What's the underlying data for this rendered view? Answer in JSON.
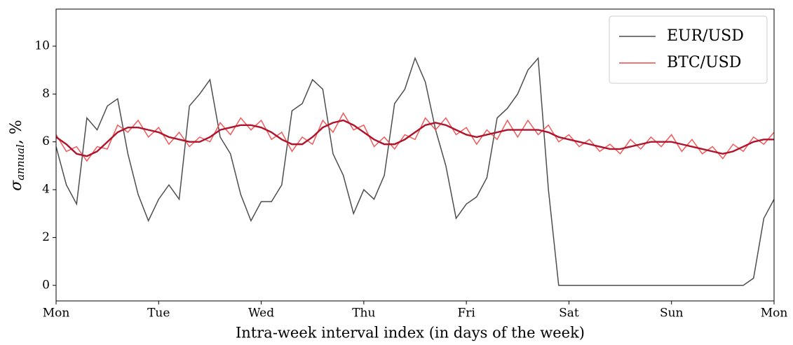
{
  "chart_data": {
    "type": "line",
    "xlabel": "Intra-week interval index (in days of the week)",
    "ylabel_symbol": "σ",
    "ylabel_subscript": "annual",
    "ylabel_unit": ", %",
    "x": [
      0,
      0.1,
      0.2,
      0.3,
      0.4,
      0.5,
      0.6,
      0.7,
      0.8,
      0.9,
      1,
      1.1,
      1.2,
      1.3,
      1.4,
      1.5,
      1.6,
      1.7,
      1.8,
      1.9,
      2,
      2.1,
      2.2,
      2.3,
      2.4,
      2.5,
      2.6,
      2.7,
      2.8,
      2.9,
      3,
      3.1,
      3.2,
      3.3,
      3.4,
      3.5,
      3.6,
      3.7,
      3.8,
      3.9,
      4,
      4.1,
      4.2,
      4.3,
      4.4,
      4.5,
      4.6,
      4.7,
      4.8,
      4.9,
      5,
      5.1,
      5.2,
      5.3,
      5.4,
      5.5,
      5.6,
      5.7,
      5.8,
      5.9,
      6,
      6.1,
      6.2,
      6.3,
      6.4,
      6.5,
      6.6,
      6.7,
      6.8,
      6.9,
      7
    ],
    "series": [
      {
        "name": "EUR/USD",
        "color": "#4d4d4d",
        "values": [
          5.8,
          4.2,
          3.4,
          7.0,
          6.5,
          7.5,
          7.8,
          5.5,
          3.8,
          2.7,
          3.6,
          4.2,
          3.6,
          7.5,
          8.0,
          8.6,
          6.2,
          5.5,
          3.8,
          2.7,
          3.5,
          3.5,
          4.2,
          7.3,
          7.6,
          8.6,
          8.2,
          5.5,
          4.6,
          3.0,
          4.0,
          3.6,
          4.6,
          7.6,
          8.2,
          9.5,
          8.5,
          6.5,
          5.0,
          2.8,
          3.4,
          3.7,
          4.5,
          7.0,
          7.4,
          8.0,
          9.0,
          9.5,
          4.0,
          0,
          0,
          0,
          0,
          0,
          0,
          0,
          0,
          0,
          0,
          0,
          0,
          0,
          0,
          0,
          0,
          0,
          0,
          0,
          0.3,
          2.8,
          3.6
        ]
      },
      {
        "name": "BTC/USD",
        "color": "#f04848",
        "values": [
          6.3,
          5.6,
          5.8,
          5.2,
          5.8,
          5.7,
          6.7,
          6.4,
          6.9,
          6.2,
          6.6,
          5.9,
          6.4,
          5.8,
          6.2,
          6.0,
          6.8,
          6.3,
          7.0,
          6.5,
          6.9,
          6.1,
          6.4,
          5.6,
          6.2,
          5.9,
          6.9,
          6.4,
          7.2,
          6.5,
          6.7,
          5.8,
          6.2,
          5.7,
          6.3,
          6.1,
          7.0,
          6.5,
          7.0,
          6.3,
          6.6,
          5.9,
          6.5,
          6.1,
          6.9,
          6.2,
          6.9,
          6.3,
          6.7,
          6.0,
          6.3,
          5.8,
          6.1,
          5.6,
          5.9,
          5.5,
          6.1,
          5.7,
          6.2,
          5.8,
          6.3,
          5.6,
          6.1,
          5.5,
          5.8,
          5.3,
          5.9,
          5.6,
          6.2,
          5.9,
          6.4
        ]
      },
      {
        "color": "#b0142c",
        "values": [
          6.2,
          5.9,
          5.5,
          5.4,
          5.6,
          6.0,
          6.4,
          6.6,
          6.6,
          6.5,
          6.4,
          6.2,
          6.1,
          6.0,
          6.0,
          6.2,
          6.5,
          6.6,
          6.7,
          6.7,
          6.6,
          6.4,
          6.1,
          5.9,
          5.9,
          6.2,
          6.6,
          6.8,
          6.9,
          6.7,
          6.4,
          6.1,
          5.9,
          5.9,
          6.1,
          6.4,
          6.7,
          6.8,
          6.7,
          6.5,
          6.3,
          6.2,
          6.3,
          6.4,
          6.5,
          6.5,
          6.5,
          6.5,
          6.4,
          6.2,
          6.1,
          6.0,
          5.9,
          5.8,
          5.7,
          5.7,
          5.8,
          5.9,
          6.0,
          6.0,
          6.0,
          5.9,
          5.8,
          5.7,
          5.6,
          5.5,
          5.6,
          5.8,
          6.0,
          6.1,
          6.1
        ]
      }
    ],
    "xlim": [
      0,
      7
    ],
    "xticks": [
      {
        "value": 0,
        "label": "Mon"
      },
      {
        "value": 1,
        "label": "Tue"
      },
      {
        "value": 2,
        "label": "Wed"
      },
      {
        "value": 3,
        "label": "Thu"
      },
      {
        "value": 4,
        "label": "Fri"
      },
      {
        "value": 5,
        "label": "Sat"
      },
      {
        "value": 6,
        "label": "Sun"
      },
      {
        "value": 7,
        "label": "Mon"
      }
    ],
    "ylim": [
      -0.65,
      11.55
    ],
    "yticks": [
      0,
      2,
      4,
      6,
      8,
      10
    ],
    "legend": "upper right"
  }
}
